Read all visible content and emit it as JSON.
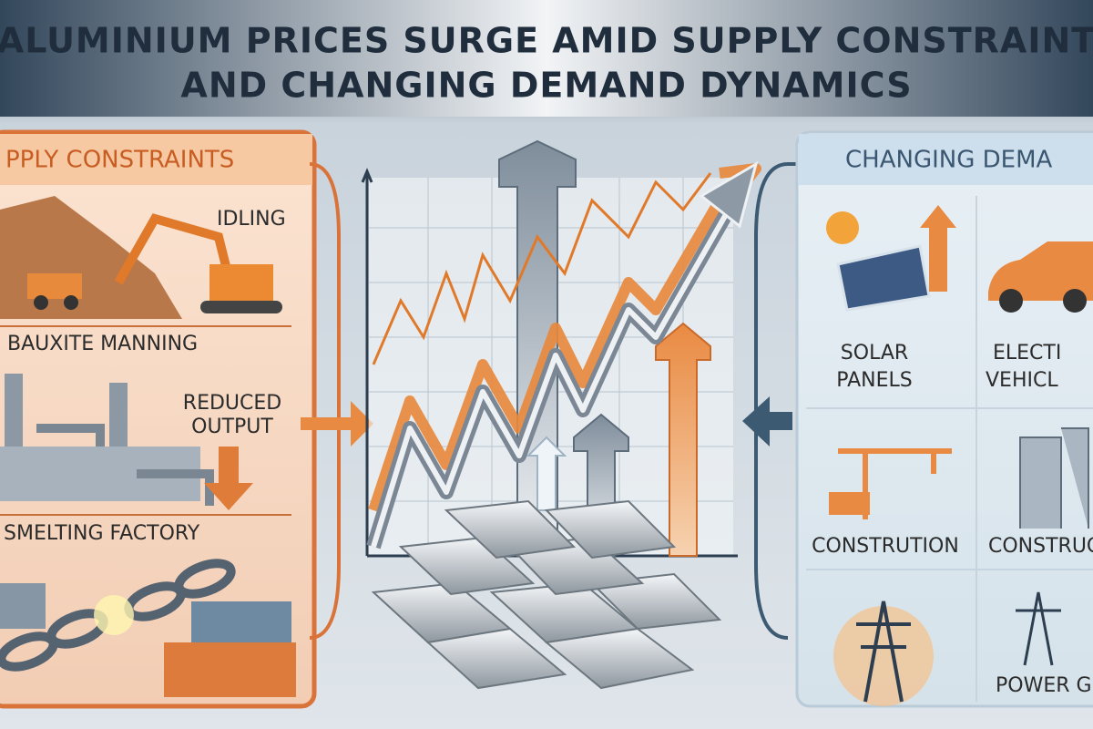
{
  "header": {
    "title_lines": [
      "ALUMINIUM PRICES SURGE AMID SUPPLY CONSTRAINT",
      "AND CHANGING DEMAND DYNAMICS"
    ]
  },
  "supply_panel": {
    "heading": "PPLY CONSTRAINTS",
    "items": [
      "IDLING",
      "BAUXITE MANNING",
      "SMELTING FACTORY"
    ],
    "reduced_output": [
      "REDUCED",
      "OUTPUT"
    ]
  },
  "demand_panel": {
    "heading": "CHANGING DEMA",
    "items": [
      {
        "lines": [
          "SOLAR",
          "PANELS"
        ]
      },
      {
        "lines": [
          "ELECTI",
          "VEHICL"
        ]
      },
      {
        "lines": [
          "CONSTRUTION"
        ]
      },
      {
        "lines": [
          "CONSTRUC"
        ]
      },
      {
        "lines": [
          "POWER G"
        ]
      }
    ]
  }
}
